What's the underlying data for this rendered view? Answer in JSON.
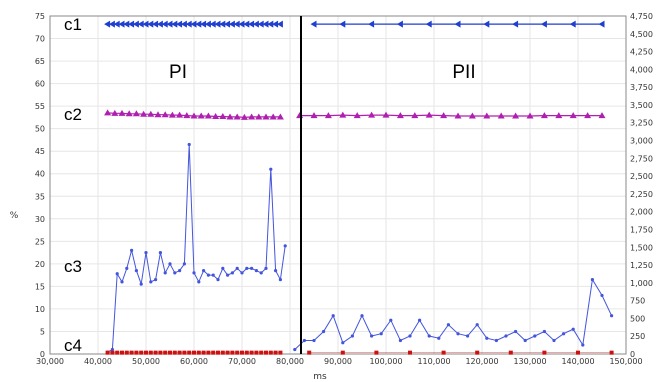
{
  "chart_data": {
    "type": "line",
    "xlabel": "ms",
    "ylabel": "%",
    "y2label": "",
    "phases": [
      {
        "label": "PI",
        "x_range": [
          42000,
          78500
        ]
      },
      {
        "label": "PII",
        "x_range": [
          81000,
          148000
        ]
      }
    ],
    "xlim": [
      30000,
      150000
    ],
    "ylim": [
      0,
      75
    ],
    "y2lim": [
      0,
      4750
    ],
    "grid": true,
    "x_ticks": [
      "30,000",
      "40,000",
      "50,000",
      "60,000",
      "70,000",
      "80,000",
      "90,000",
      "100,000",
      "110,000",
      "120,000",
      "130,000",
      "140,000",
      "150,000"
    ],
    "x_tick_values": [
      30000,
      40000,
      50000,
      60000,
      70000,
      80000,
      90000,
      100000,
      110000,
      120000,
      130000,
      140000,
      150000
    ],
    "y_ticks": [
      "0",
      "5",
      "10",
      "15",
      "20",
      "25",
      "30",
      "35",
      "40",
      "45",
      "50",
      "55",
      "60",
      "65",
      "70",
      "75"
    ],
    "y_tick_values": [
      0,
      5,
      10,
      15,
      20,
      25,
      30,
      35,
      40,
      45,
      50,
      55,
      60,
      65,
      70,
      75
    ],
    "y2_ticks": [
      "0",
      "250",
      "500",
      "750",
      "1,000",
      "1,250",
      "1,500",
      "1,750",
      "2,000",
      "2,250",
      "2,500",
      "2,750",
      "3,000",
      "3,250",
      "3,500",
      "3,750",
      "4,000",
      "4,250",
      "4,500",
      "4,750"
    ],
    "y2_tick_values": [
      0,
      250,
      500,
      750,
      1000,
      1250,
      1500,
      1750,
      2000,
      2250,
      2500,
      2750,
      3000,
      3250,
      3500,
      3750,
      4000,
      4250,
      4500,
      4750
    ],
    "series": [
      {
        "name": "c1",
        "color": "#1f3fcf",
        "marker": "triangle-left",
        "x": [
          42000,
          43000,
          44000,
          45000,
          46000,
          47000,
          48000,
          49000,
          50000,
          51000,
          52000,
          53000,
          54000,
          55000,
          56000,
          57000,
          58000,
          59000,
          60000,
          61000,
          62000,
          63000,
          64000,
          65000,
          66000,
          67000,
          68000,
          69000,
          70000,
          71000,
          72000,
          73000,
          74000,
          75000,
          76000,
          77000,
          78000,
          85000,
          91000,
          97000,
          103000,
          109000,
          115000,
          121000,
          127000,
          133000,
          139000,
          145000
        ],
        "y": [
          73.2,
          73.2,
          73.2,
          73.2,
          73.2,
          73.2,
          73.2,
          73.2,
          73.2,
          73.2,
          73.2,
          73.2,
          73.2,
          73.2,
          73.2,
          73.2,
          73.2,
          73.2,
          73.2,
          73.2,
          73.2,
          73.2,
          73.2,
          73.2,
          73.2,
          73.2,
          73.2,
          73.2,
          73.2,
          73.2,
          73.2,
          73.2,
          73.2,
          73.2,
          73.2,
          73.2,
          73.2,
          73.2,
          73.2,
          73.2,
          73.2,
          73.2,
          73.2,
          73.2,
          73.2,
          73.2,
          73.2,
          73.2
        ]
      },
      {
        "name": "c2",
        "color": "#b020b0",
        "marker": "triangle-up",
        "x": [
          42000,
          43500,
          45000,
          46500,
          48000,
          49500,
          51000,
          52500,
          54000,
          55500,
          57000,
          58500,
          60000,
          61500,
          63000,
          64500,
          66000,
          67500,
          69000,
          70500,
          72000,
          73500,
          75000,
          76500,
          78000,
          82000,
          85000,
          88000,
          91000,
          94000,
          97000,
          100000,
          103000,
          106000,
          109000,
          112000,
          115000,
          118000,
          121000,
          124000,
          127000,
          130000,
          133000,
          136000,
          139000,
          142000,
          145000
        ],
        "y": [
          53.5,
          53.4,
          53.4,
          53.3,
          53.3,
          53.2,
          53.2,
          53.1,
          53.1,
          53.0,
          53.0,
          52.9,
          52.8,
          52.8,
          52.8,
          52.7,
          52.7,
          52.6,
          52.6,
          52.5,
          52.6,
          52.6,
          52.6,
          52.6,
          52.6,
          52.9,
          52.9,
          52.9,
          53.0,
          52.9,
          53.0,
          53.0,
          52.9,
          52.9,
          53.0,
          52.9,
          52.8,
          52.8,
          52.8,
          52.8,
          52.8,
          52.8,
          52.9,
          52.9,
          52.9,
          52.9,
          52.9
        ]
      },
      {
        "name": "c3",
        "color": "#4455dd",
        "marker": "circle",
        "x": [
          42000,
          43000,
          44000,
          45000,
          46000,
          47000,
          48000,
          49000,
          50000,
          51000,
          52000,
          53000,
          54000,
          55000,
          56000,
          57000,
          58000,
          59000,
          60000,
          61000,
          62000,
          63000,
          64000,
          65000,
          66000,
          67000,
          68000,
          69000,
          70000,
          71000,
          72000,
          73000,
          74000,
          75000,
          76000,
          77000,
          78000,
          79000,
          81000,
          83000,
          85000,
          87000,
          89000,
          91000,
          93000,
          95000,
          97000,
          99000,
          101000,
          103000,
          105000,
          107000,
          109000,
          111000,
          113000,
          115000,
          117000,
          119000,
          121000,
          123000,
          125000,
          127000,
          129000,
          131000,
          133000,
          135000,
          137000,
          139000,
          141000,
          143000,
          145000,
          147000
        ],
        "y": [
          0.4,
          1.0,
          17.8,
          16.0,
          19.0,
          23.0,
          18.5,
          15.5,
          22.5,
          16.0,
          16.5,
          22.5,
          18.0,
          20.0,
          18.0,
          18.5,
          20.0,
          46.5,
          18.0,
          16.0,
          18.5,
          17.5,
          17.5,
          16.5,
          19.0,
          17.5,
          18.0,
          19.0,
          18.0,
          19.0,
          19.0,
          18.5,
          18.0,
          19.0,
          41.0,
          18.5,
          16.5,
          24.0,
          1.0,
          3.0,
          3.0,
          5.0,
          8.5,
          2.5,
          4.0,
          8.5,
          4.0,
          4.5,
          7.5,
          3.0,
          4.0,
          7.5,
          4.0,
          3.5,
          6.5,
          4.5,
          4.0,
          6.5,
          3.5,
          3.0,
          4.0,
          5.0,
          3.0,
          4.0,
          5.0,
          3.0,
          4.5,
          5.5,
          2.0,
          16.5,
          13.0,
          8.5
        ]
      },
      {
        "name": "c4",
        "color": "#cc1111",
        "marker": "square",
        "x": [
          42000,
          43000,
          44000,
          45000,
          46000,
          47000,
          48000,
          49000,
          50000,
          51000,
          52000,
          53000,
          54000,
          55000,
          56000,
          57000,
          58000,
          59000,
          60000,
          61000,
          62000,
          63000,
          64000,
          65000,
          66000,
          67000,
          68000,
          69000,
          70000,
          71000,
          72000,
          73000,
          74000,
          75000,
          76000,
          77000,
          78000,
          84000,
          91000,
          98000,
          105000,
          112000,
          119000,
          126000,
          133000,
          140000,
          147000
        ],
        "y": [
          0.3,
          0.3,
          0.3,
          0.3,
          0.3,
          0.3,
          0.3,
          0.3,
          0.3,
          0.3,
          0.3,
          0.3,
          0.3,
          0.3,
          0.3,
          0.3,
          0.3,
          0.3,
          0.3,
          0.3,
          0.3,
          0.3,
          0.3,
          0.3,
          0.3,
          0.3,
          0.3,
          0.3,
          0.3,
          0.3,
          0.3,
          0.3,
          0.3,
          0.3,
          0.3,
          0.3,
          0.3,
          0.3,
          0.3,
          0.3,
          0.3,
          0.3,
          0.3,
          0.3,
          0.3,
          0.3,
          0.3
        ]
      }
    ]
  }
}
